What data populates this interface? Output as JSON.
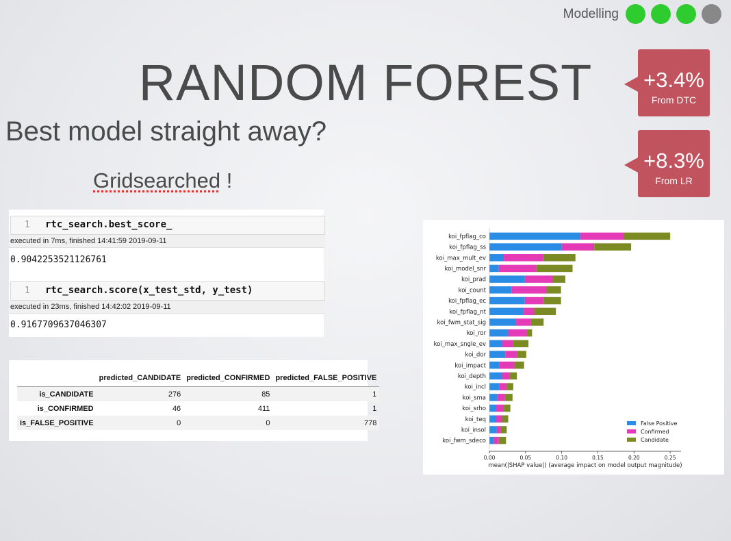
{
  "header": {
    "section_label": "Modelling",
    "progress_colors": [
      "#2ecc2e",
      "#2ecc2e",
      "#2ecc2e",
      "#888888"
    ]
  },
  "slide": {
    "title": "RANDOM FOREST",
    "subtitle": "Best model straight away?",
    "grid_note_word": "Gridsearched",
    "grid_note_suffix": " !"
  },
  "badges": [
    {
      "pct": "+3.4%",
      "from": "From DTC"
    },
    {
      "pct": "+8.3%",
      "from": "From LR"
    }
  ],
  "notebook": {
    "cells": [
      {
        "num": "1",
        "code": "rtc_search.best_score_",
        "exec": "executed in 7ms, finished 14:41:59 2019-09-11",
        "output": "0.9042253521126761"
      },
      {
        "num": "1",
        "code": "rtc_search.score(x_test_std, y_test)",
        "exec": "executed in 23ms, finished 14:42:02 2019-09-11",
        "output": "0.9167709637046307"
      }
    ]
  },
  "confusion_table": {
    "columns": [
      "",
      "predicted_CANDIDATE",
      "predicted_CONFIRMED",
      "predicted_FALSE_POSITIVE"
    ],
    "rows": [
      {
        "label": "is_CANDIDATE",
        "values": [
          "276",
          "85",
          "1"
        ]
      },
      {
        "label": "is_CONFIRMED",
        "values": [
          "46",
          "411",
          "1"
        ]
      },
      {
        "label": "is_FALSE_POSITIVE",
        "values": [
          "0",
          "0",
          "778"
        ]
      }
    ]
  },
  "chart_data": {
    "type": "bar",
    "orientation": "horizontal",
    "stacked": true,
    "categories": [
      "koi_fpflag_co",
      "koi_fpflag_ss",
      "koi_max_mult_ev",
      "koi_model_snr",
      "koi_prad",
      "koi_count",
      "koi_fpflag_ec",
      "koi_fpflag_nt",
      "koi_fwm_stat_sig",
      "koi_ror",
      "koi_max_sngle_ev",
      "koi_dor",
      "koi_impact",
      "koi_depth",
      "koi_incl",
      "koi_sma",
      "koi_srho",
      "koi_teq",
      "koi_insol",
      "koi_fwm_sdeco"
    ],
    "series": [
      {
        "name": "False Positive",
        "color": "#2b8ce6",
        "values": [
          0.126,
          0.1,
          0.02,
          0.013,
          0.049,
          0.031,
          0.049,
          0.047,
          0.037,
          0.026,
          0.018,
          0.022,
          0.014,
          0.017,
          0.014,
          0.011,
          0.009,
          0.009,
          0.01,
          0.006
        ]
      },
      {
        "name": "Confirmed",
        "color": "#e43ab8",
        "values": [
          0.06,
          0.045,
          0.055,
          0.052,
          0.038,
          0.048,
          0.026,
          0.015,
          0.02,
          0.026,
          0.015,
          0.016,
          0.021,
          0.011,
          0.01,
          0.01,
          0.011,
          0.008,
          0.006,
          0.007
        ]
      },
      {
        "name": "Candidate",
        "color": "#7b8a23",
        "values": [
          0.064,
          0.051,
          0.044,
          0.05,
          0.018,
          0.02,
          0.024,
          0.03,
          0.018,
          0.007,
          0.021,
          0.013,
          0.013,
          0.01,
          0.009,
          0.011,
          0.009,
          0.009,
          0.008,
          0.01
        ]
      }
    ],
    "xlabel": "mean(|SHAP value|) (average impact on model output magnitude)",
    "xticks": [
      "0.00",
      "0.05",
      "0.10",
      "0.15",
      "0.20",
      "0.25"
    ],
    "xlim": [
      0,
      0.265
    ],
    "legend": "bottom-right"
  }
}
